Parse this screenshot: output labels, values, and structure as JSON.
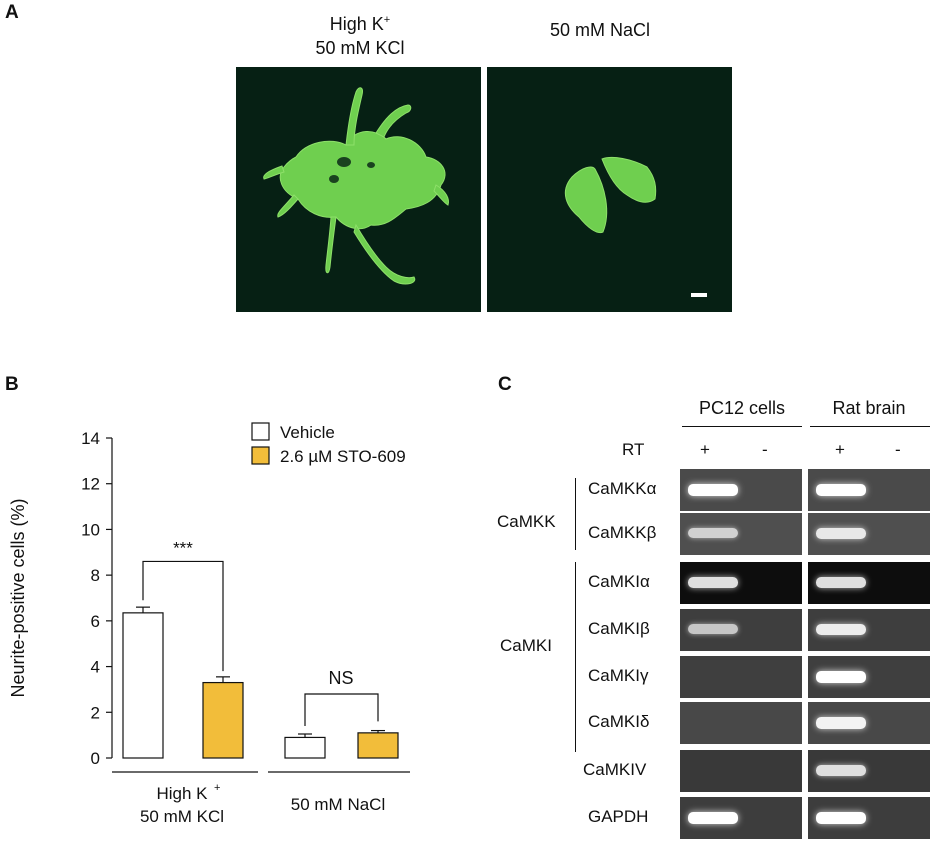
{
  "panel_a": {
    "letter": "A",
    "left_title_line1": "High K",
    "left_title_sup": "+",
    "left_title_line2": "50 mM KCl",
    "right_title": "50 mM NaCl"
  },
  "panel_b": {
    "letter": "B",
    "legend": [
      "Vehicle",
      "2.6 µM STO-609"
    ],
    "sig_left": "***",
    "sig_right": "NS",
    "group1_line1": "High K",
    "group1_sup": "+",
    "group1_line2": "50 mM KCl",
    "group2": "50 mM NaCl"
  },
  "chart_data": {
    "type": "bar",
    "categories": [
      "High K+ 50 mM KCl",
      "50 mM NaCl"
    ],
    "series": [
      {
        "name": "Vehicle",
        "values": [
          6.35,
          0.9
        ],
        "errors": [
          0.25,
          0.15
        ]
      },
      {
        "name": "2.6 µM STO-609",
        "values": [
          3.3,
          1.1
        ],
        "errors": [
          0.25,
          0.1
        ]
      }
    ],
    "ylabel": "Neurite-positive cells (%)",
    "ylim": [
      0,
      14
    ],
    "yticks": [
      "0",
      "2",
      "4",
      "6",
      "8",
      "10",
      "12",
      "14"
    ],
    "colors": {
      "Vehicle": "#ffffff",
      "2.6 µM STO-609": "#f2bd3a"
    }
  },
  "panel_c": {
    "letter": "C",
    "col_pc12": "PC12 cells",
    "col_brain": "Rat brain",
    "rt_label": "RT",
    "plus": "+",
    "minus": "-",
    "group_camkk": "CaMKK",
    "group_camki": "CaMKI",
    "rows": [
      {
        "label": "CaMKKα",
        "bands": [
          1,
          0,
          1,
          0
        ]
      },
      {
        "label": "CaMKKβ",
        "bands": [
          0.6,
          0,
          0.8,
          0
        ]
      },
      {
        "label": "CaMKIα",
        "bands": [
          0.8,
          0,
          0.8,
          0
        ]
      },
      {
        "label": "CaMKIβ",
        "bands": [
          0.55,
          0,
          0.85,
          0
        ]
      },
      {
        "label": "CaMKIγ",
        "bands": [
          0,
          0,
          1,
          0
        ]
      },
      {
        "label": "CaMKIδ",
        "bands": [
          0,
          0,
          0.9,
          0
        ]
      },
      {
        "label": "CaMKIV",
        "bands": [
          0,
          0,
          0.75,
          0
        ]
      },
      {
        "label": "GAPDH",
        "bands": [
          1,
          0,
          1,
          0
        ]
      }
    ]
  }
}
